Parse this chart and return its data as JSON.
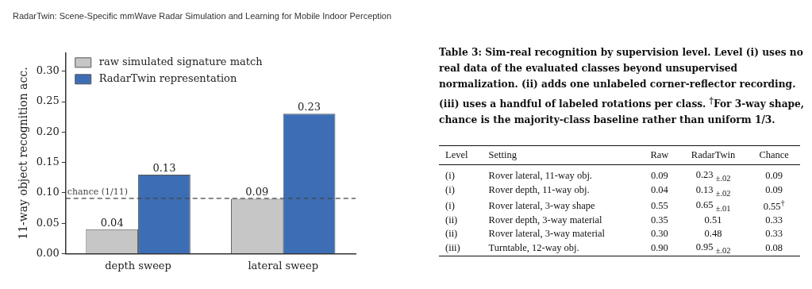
{
  "chart_data": [
    {
      "type": "bar",
      "ylabel": "11-way object recognition acc.",
      "categories": [
        "depth sweep",
        "lateral sweep"
      ],
      "series": [
        {
          "name": "raw simulated signature match",
          "color": "#c6c6c6",
          "values": [
            0.04,
            0.09
          ]
        },
        {
          "name": "RadarTwin representation",
          "color": "#3d6eb5",
          "values": [
            0.13,
            0.23
          ]
        }
      ],
      "ylim": [
        0,
        0.33
      ],
      "yticks": [
        {
          "value": 0,
          "label": "0.00"
        },
        {
          "value": 0.05,
          "label": "0.05"
        },
        {
          "value": 0.1,
          "label": "0.10"
        },
        {
          "value": 0.15,
          "label": "0.15"
        },
        {
          "value": 0.2,
          "label": "0.20"
        },
        {
          "value": 0.25,
          "label": "0.25"
        },
        {
          "value": 0.3,
          "label": "0.30"
        }
      ],
      "ref_lines": [
        {
          "axis": "y",
          "value": 0.0909,
          "label": "chance (1/11)",
          "color": "#444444",
          "line_style": "dashed"
        }
      ],
      "data_labels": true,
      "grid": false,
      "legend": "top left"
    },
    {
      "type": "other",
      "title": "Table 3: Sim-real recognition by supervision level. Level (i) uses no real data of the evaluated classes beyond unsupervised normalization. (ii) adds one unlabeled corner-reflector recording. (iii) uses a handful of labeled rotations per class. $^{†}$For 3-way shape, chance is the majority-class baseline rather than uniform 1/3.",
      "annotations": [
        "RadarTwin: Scene-Specific mmWave Radar Simulation and Learning for Mobile Indoor Perception"
      ],
      "categories": [
        "Level",
        "Setting",
        "Raw",
        "RadarTwin",
        "Chance"
      ],
      "cell_labels": [
        [
          "(i)",
          "Rover lateral, 11-way obj.",
          "0.09",
          "0.23 $_{±.02}$",
          "0.09"
        ],
        [
          "(i)",
          "Rover depth, 11-way obj.",
          "0.04",
          "0.13 $_{±.02}$",
          "0.09"
        ],
        [
          "(i)",
          "Rover lateral, 3-way shape",
          "0.55",
          "0.65 $_{±.01}$",
          "0.55$^{†}$"
        ],
        [
          "(ii)",
          "Rover depth, 3-way material",
          "0.35",
          "0.51",
          "0.33"
        ],
        [
          "(ii)",
          "Rover lateral, 3-way material",
          "0.30",
          "0.48",
          "0.33"
        ],
        [
          "(iii)",
          "Turntable, 12-way obj.",
          "0.90",
          "0.95 $_{±.02}$",
          "0.08"
        ]
      ]
    }
  ]
}
